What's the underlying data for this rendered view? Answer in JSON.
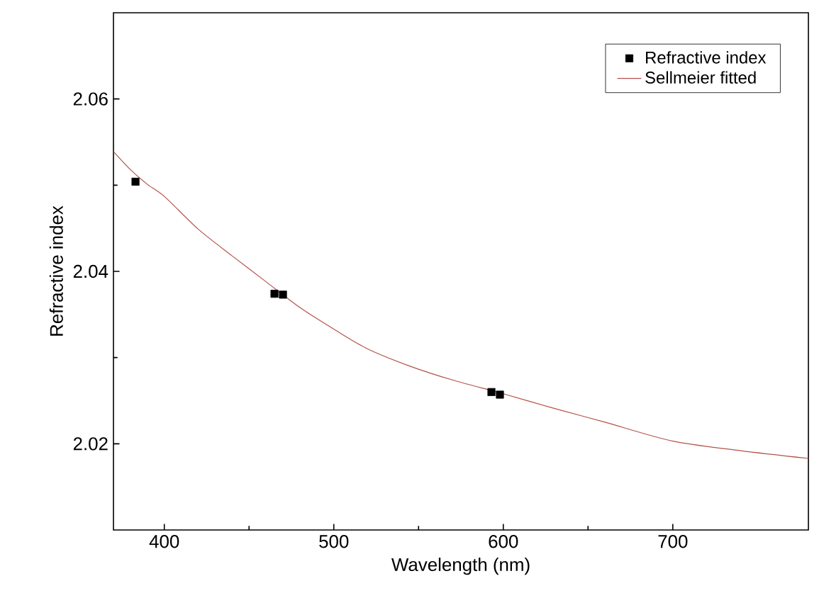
{
  "chart_data": {
    "type": "scatter",
    "xlabel": "Wavelength (nm)",
    "ylabel": "Refractive index",
    "xlim": [
      370,
      780
    ],
    "ylim": [
      2.01,
      2.07
    ],
    "xticks": [
      400,
      500,
      600,
      700
    ],
    "yticks": [
      2.02,
      2.04,
      2.06
    ],
    "legend": "top right",
    "grid": false,
    "series": [
      {
        "name": "Refractive index",
        "marker": "square",
        "color": "#000000",
        "x": [
          383,
          465,
          470,
          593,
          598
        ],
        "values": [
          2.0504,
          2.0374,
          2.0373,
          2.026,
          2.0257
        ]
      },
      {
        "name": "Sellmeier fitted",
        "type": "line",
        "marker": "none",
        "line_style": "solid",
        "color": "#b5524a",
        "x": [
          370,
          380,
          390,
          400,
          420,
          440,
          460,
          480,
          500,
          520,
          545,
          570,
          600,
          630,
          660,
          700,
          740,
          780
        ],
        "values": [
          2.0539,
          2.0518,
          2.0501,
          2.0487,
          2.0449,
          2.0418,
          2.0388,
          2.0358,
          2.0333,
          2.031,
          2.029,
          2.0274,
          2.0258,
          2.0241,
          2.0225,
          2.0203,
          2.0192,
          2.0183
        ]
      }
    ]
  }
}
